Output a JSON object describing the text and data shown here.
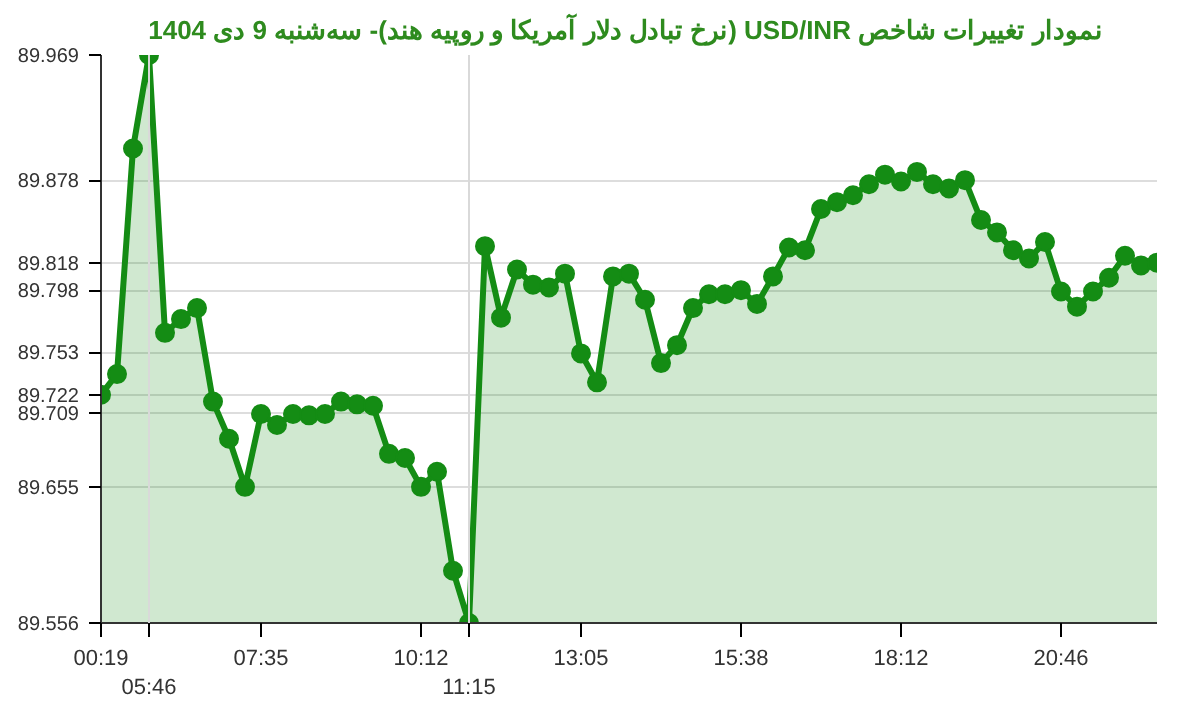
{
  "chart_data": {
    "type": "area",
    "title": "نمودار تغییرات شاخص USD/INR (نرخ تبادل دلار آمریکا و روپیه هند)- سه‌شنبه  9 دی 1404",
    "categories": [
      "00:19",
      null,
      null,
      "05:46",
      null,
      null,
      null,
      null,
      null,
      null,
      "07:35",
      null,
      null,
      null,
      null,
      null,
      null,
      null,
      null,
      null,
      "10:12",
      null,
      null,
      "11:15",
      null,
      null,
      null,
      null,
      null,
      null,
      "13:05",
      null,
      null,
      null,
      null,
      null,
      null,
      null,
      null,
      null,
      "15:38",
      null,
      null,
      null,
      null,
      null,
      null,
      null,
      null,
      null,
      "18:12",
      null,
      null,
      null,
      null,
      null,
      null,
      null,
      null,
      null,
      "20:46",
      null,
      null,
      null,
      null,
      null,
      null
    ],
    "series": [
      {
        "color": "#148c14",
        "values": [
          89.722,
          89.737,
          89.901,
          89.969,
          89.767,
          89.777,
          89.785,
          89.717,
          89.69,
          89.655,
          89.708,
          89.7,
          89.708,
          89.707,
          89.708,
          89.717,
          89.715,
          89.714,
          89.679,
          89.676,
          89.655,
          89.666,
          89.594,
          89.556,
          89.83,
          89.778,
          89.813,
          89.802,
          89.8,
          89.81,
          89.752,
          89.731,
          89.808,
          89.81,
          89.791,
          89.745,
          89.758,
          89.785,
          89.795,
          89.795,
          89.798,
          89.788,
          89.808,
          89.829,
          89.827,
          89.857,
          89.862,
          89.867,
          89.875,
          89.882,
          89.877,
          89.884,
          89.875,
          89.872,
          89.878,
          89.849,
          89.84,
          89.827,
          89.821,
          89.833,
          89.797,
          89.786,
          89.797,
          89.807,
          89.823,
          89.816,
          89.818
        ]
      }
    ],
    "ylim": [
      89.556,
      89.969
    ],
    "yticks": [
      89.556,
      89.655,
      89.709,
      89.722,
      89.753,
      89.798,
      89.818,
      89.878,
      89.969
    ],
    "ref_lines": [
      {
        "axis": "x",
        "value": "05:46",
        "color": "#d9d9d9"
      },
      {
        "axis": "x",
        "value": "11:15",
        "color": "#d9d9d9"
      }
    ],
    "grid": "y",
    "marker": "circle",
    "line_style": "solid"
  }
}
